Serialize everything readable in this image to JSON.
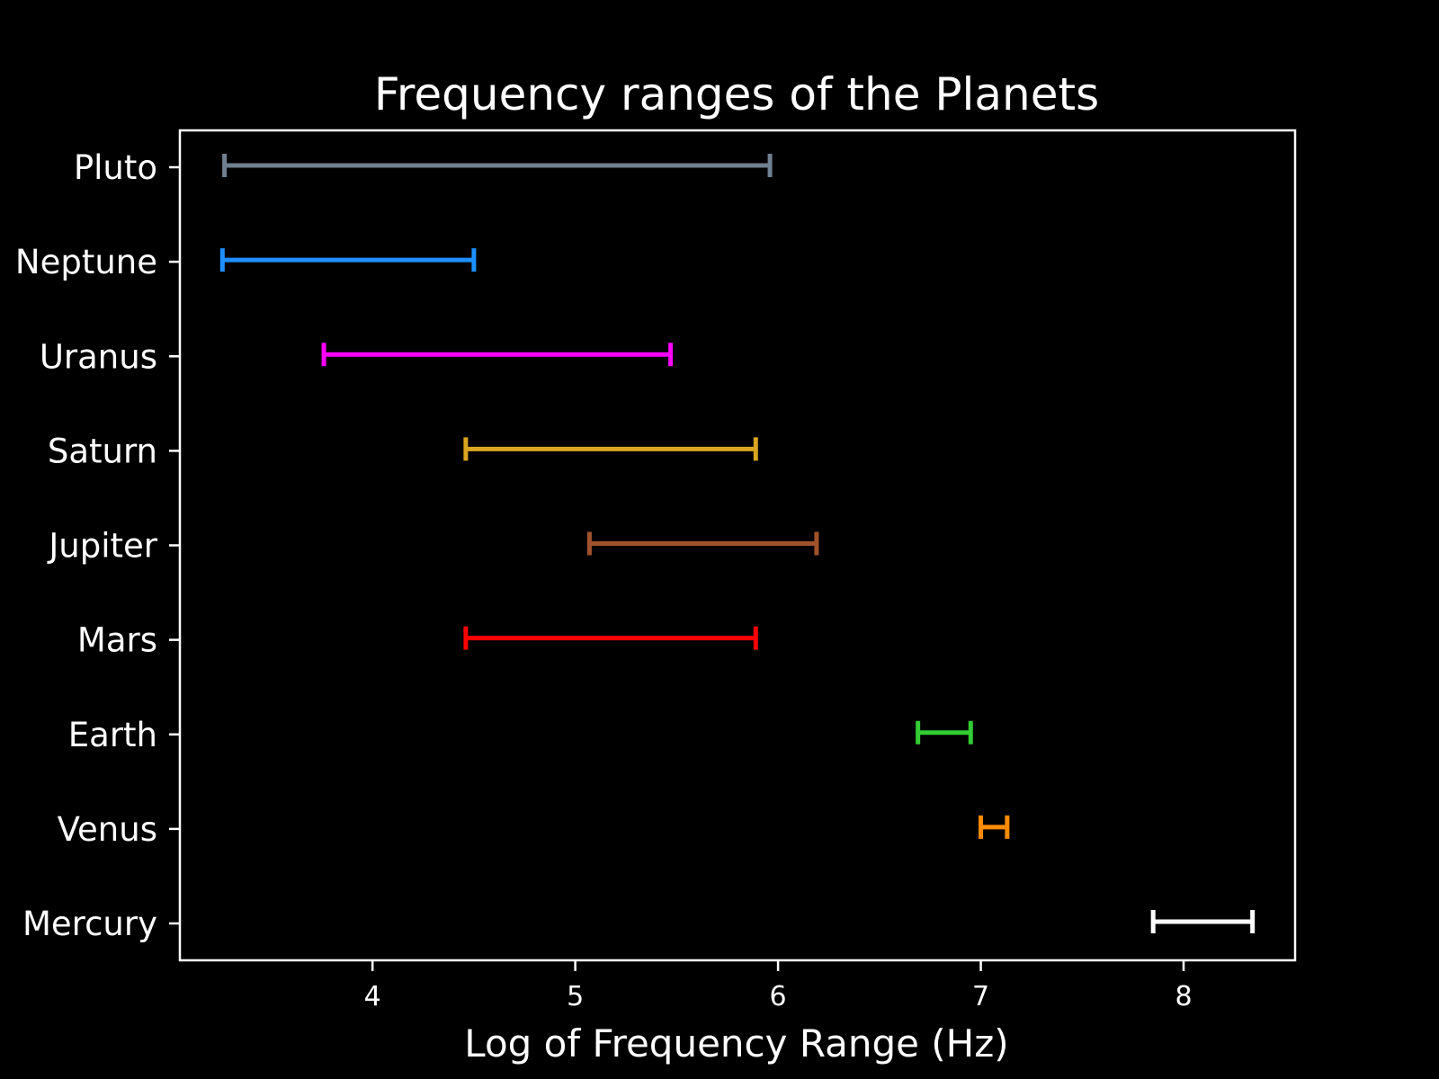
{
  "chart_data": {
    "type": "range-errorbar",
    "title": "Frequency ranges of the Planets",
    "xlabel": "Log of Frequency Range (Hz)",
    "ylabel": "",
    "xlim": [
      3.05,
      8.55
    ],
    "xticks": [
      4,
      5,
      6,
      7,
      8
    ],
    "grid": false,
    "background": "#000000",
    "foreground": "#ffffff",
    "categories": [
      "Pluto",
      "Neptune",
      "Uranus",
      "Saturn",
      "Jupiter",
      "Mars",
      "Earth",
      "Venus",
      "Mercury"
    ],
    "series": [
      {
        "category": "Pluto",
        "low": 3.27,
        "high": 5.96,
        "color": "#708090"
      },
      {
        "category": "Neptune",
        "low": 3.26,
        "high": 4.5,
        "color": "#1e90ff"
      },
      {
        "category": "Uranus",
        "low": 3.76,
        "high": 5.47,
        "color": "#ff00ff"
      },
      {
        "category": "Saturn",
        "low": 4.46,
        "high": 5.89,
        "color": "#daa520"
      },
      {
        "category": "Jupiter",
        "low": 5.07,
        "high": 6.19,
        "color": "#a0522d"
      },
      {
        "category": "Mars",
        "low": 4.46,
        "high": 5.89,
        "color": "#ff0000"
      },
      {
        "category": "Earth",
        "low": 6.69,
        "high": 6.95,
        "color": "#32cd32"
      },
      {
        "category": "Venus",
        "low": 7.0,
        "high": 7.13,
        "color": "#ff8c00"
      },
      {
        "category": "Mercury",
        "low": 7.85,
        "high": 8.34,
        "color": "#ffffff"
      }
    ]
  }
}
